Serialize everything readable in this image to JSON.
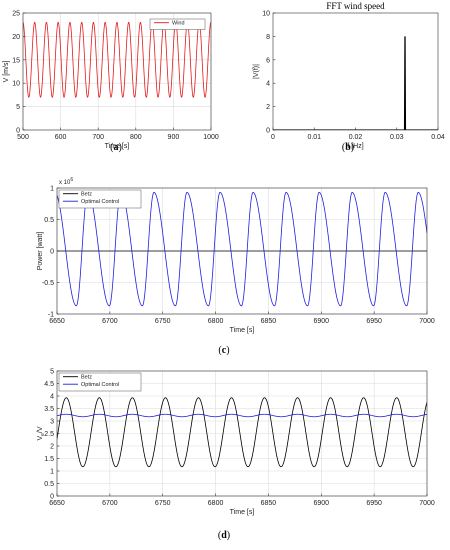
{
  "chart_data": [
    {
      "id": "a",
      "caption": {
        "open": "(",
        "letter": "a",
        "close": ")"
      },
      "type": "line",
      "title": "",
      "xlabel": "Time [s]",
      "ylabel": "V [m/s]",
      "xlim": [
        500,
        1000
      ],
      "ylim": [
        0,
        25
      ],
      "xticks": [
        "500",
        "600",
        "700",
        "800",
        "900",
        "1000"
      ],
      "yticks": [
        "0",
        "5",
        "10",
        "15",
        "20",
        "25"
      ],
      "grid": true,
      "legend_position": "top-right",
      "series": [
        {
          "name": "Wind",
          "color": "#e41a1c",
          "model": {
            "kind": "sine",
            "mean": 15,
            "amplitude": 8,
            "period": 31.25,
            "phase_x": 492
          }
        }
      ]
    },
    {
      "id": "b",
      "caption": {
        "open": "(",
        "letter": "b",
        "close": ")"
      },
      "type": "line",
      "title": "FFT wind speed",
      "xlabel": "f [Hz]",
      "ylabel": "|V(f)|",
      "xlim": [
        0,
        0.04
      ],
      "ylim": [
        0,
        10
      ],
      "xticks": [
        "0",
        "0.01",
        "0.02",
        "0.03",
        "0.04"
      ],
      "yticks": [
        "0",
        "2",
        "4",
        "6",
        "8",
        "10"
      ],
      "grid": false,
      "series": [
        {
          "color": "#000000",
          "x": [
            0,
            0.0319,
            0.032,
            0.0321,
            0.04
          ],
          "y": [
            0,
            0,
            8,
            0,
            0
          ]
        }
      ]
    },
    {
      "id": "c",
      "caption": {
        "open": "(",
        "letter": "c",
        "close": ")"
      },
      "type": "line",
      "title": "",
      "xlabel": "Time [s]",
      "ylabel": "Power [watt]",
      "exponent_label": "x 10",
      "exponent_value": "6",
      "xlim": [
        6650,
        7000
      ],
      "ylim": [
        -1,
        1
      ],
      "xticks": [
        "6650",
        "6700",
        "6750",
        "6800",
        "6850",
        "6900",
        "6950",
        "7000"
      ],
      "yticks": [
        "-1",
        "-0.5",
        "0",
        "0.5",
        "1"
      ],
      "grid": true,
      "legend_position": "top-left",
      "series": [
        {
          "name": "Betz",
          "color": "#000000",
          "model": {
            "kind": "constant",
            "value": 0
          }
        },
        {
          "name": "Optimal Control",
          "color": "#1f1fe0",
          "model": {
            "kind": "sawtooth",
            "period": 31.25,
            "phase_x": 6637,
            "min": -0.87,
            "max": 0.93,
            "rise_fraction": 0.35
          }
        }
      ]
    },
    {
      "id": "d",
      "caption": {
        "open": "(",
        "letter": "d",
        "close": ")"
      },
      "type": "line",
      "title": "",
      "xlabel": "Time [s]",
      "ylabel": "V",
      "ylabel_subscript": "e",
      "ylabel_suffix": "/V",
      "xlim": [
        6650,
        7000
      ],
      "ylim": [
        0,
        5
      ],
      "xticks": [
        "6650",
        "6700",
        "6750",
        "6800",
        "6850",
        "6900",
        "6950",
        "7000"
      ],
      "yticks": [
        "0",
        "0.5",
        "1",
        "1.5",
        "2",
        "2.5",
        "3",
        "3.5",
        "4",
        "4.5",
        "5"
      ],
      "grid": true,
      "legend_position": "top-left",
      "series": [
        {
          "name": "Betz",
          "color": "#000000",
          "model": {
            "kind": "sine",
            "mean": 2.55,
            "amplitude": 1.38,
            "period": 31.25,
            "phase_x": 6651
          }
        },
        {
          "name": "Optimal Control",
          "color": "#1f1fe0",
          "model": {
            "kind": "sine",
            "mean": 3.22,
            "amplitude": 0.05,
            "period": 31.25,
            "phase_x": 6651
          }
        }
      ]
    }
  ]
}
